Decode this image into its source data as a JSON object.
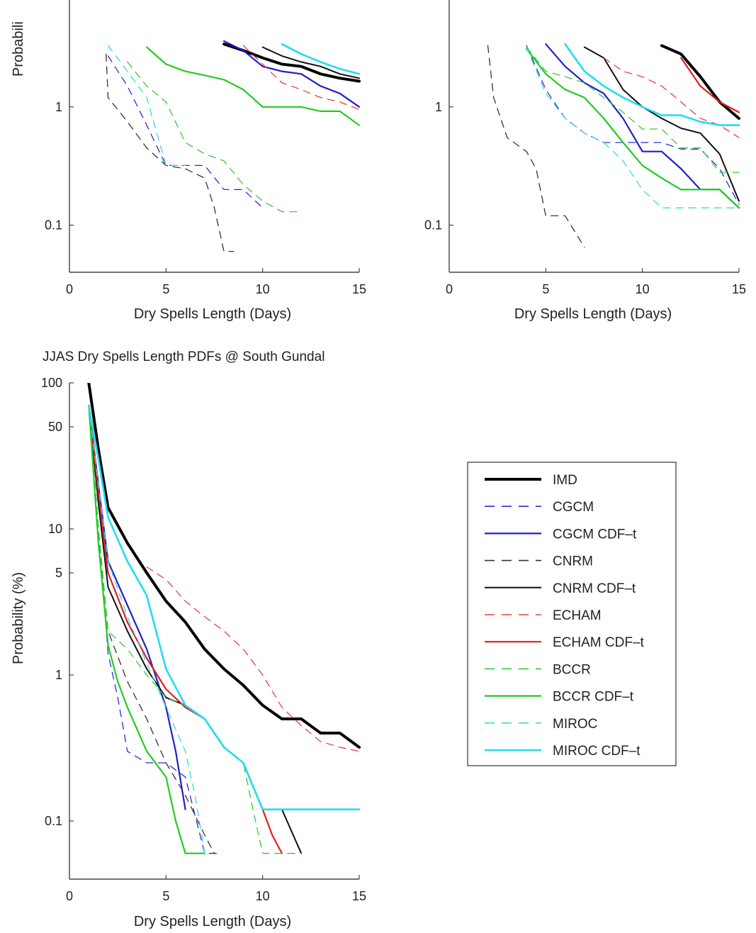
{
  "series_styles": [
    {
      "name": "IMD",
      "color": "#000000",
      "dash": false,
      "width": 4
    },
    {
      "name": "CGCM",
      "color": "#2b2bd8",
      "dash": true,
      "width": 1.3
    },
    {
      "name": "CGCM CDF–t",
      "color": "#1f1fcc",
      "dash": false,
      "width": 2.2
    },
    {
      "name": "CNRM",
      "color": "#333333",
      "dash": true,
      "width": 1.3
    },
    {
      "name": "CNRM CDF–t",
      "color": "#111111",
      "dash": false,
      "width": 2
    },
    {
      "name": "ECHAM",
      "color": "#e84040",
      "dash": true,
      "width": 1.3
    },
    {
      "name": "ECHAM CDF–t",
      "color": "#e02020",
      "dash": false,
      "width": 2.2
    },
    {
      "name": "BCCR",
      "color": "#33cc33",
      "dash": true,
      "width": 1.3
    },
    {
      "name": "BCCR CDF–t",
      "color": "#22cc22",
      "dash": false,
      "width": 2.2
    },
    {
      "name": "MIROC",
      "color": "#33dddd",
      "dash": true,
      "width": 1.3
    },
    {
      "name": "MIROC CDF–t",
      "color": "#22ddee",
      "dash": false,
      "width": 2.6
    }
  ],
  "legend": {
    "position": "right",
    "entries": [
      "IMD",
      "CGCM",
      "CGCM CDF–t",
      "CNRM",
      "CNRM CDF–t",
      "ECHAM",
      "ECHAM CDF–t",
      "BCCR",
      "BCCR CDF–t",
      "MIROC",
      "MIROC CDF–t"
    ]
  },
  "chart_data": [
    {
      "type": "line",
      "title": "",
      "xlabel": "Dry Spells Length (Days)",
      "ylabel": "Probabili",
      "yscale": "log",
      "xlim": [
        0,
        15
      ],
      "x_ticks": [
        "0",
        "5",
        "10",
        "15"
      ],
      "y_ticks": [
        {
          "value": 1,
          "label": "1"
        },
        {
          "value": 0.1,
          "label": "0.1"
        }
      ],
      "series": [
        {
          "name": "IMD",
          "x": [
            8,
            9,
            10,
            11,
            12,
            13,
            14,
            15
          ],
          "y": [
            3.4,
            3.0,
            2.6,
            2.3,
            2.2,
            1.9,
            1.75,
            1.65
          ]
        },
        {
          "name": "CGCM",
          "x": [
            2,
            3,
            4,
            5,
            6,
            7,
            8,
            9,
            10
          ],
          "y": [
            2.7,
            1.5,
            0.7,
            0.32,
            0.32,
            0.32,
            0.2,
            0.2,
            0.14
          ]
        },
        {
          "name": "CGCM CDF–t",
          "x": [
            8,
            9,
            10,
            11,
            12,
            13,
            14,
            15
          ],
          "y": [
            3.6,
            3.0,
            2.2,
            2.0,
            1.9,
            1.5,
            1.3,
            1.0
          ]
        },
        {
          "name": "CNRM",
          "x": [
            1.9,
            2,
            3,
            4,
            5,
            6,
            7,
            7.5,
            8,
            8.5
          ],
          "y": [
            2.8,
            1.2,
            0.75,
            0.45,
            0.32,
            0.3,
            0.25,
            0.14,
            0.06,
            0.06
          ]
        },
        {
          "name": "CNRM CDF–t",
          "x": [
            10,
            11,
            12,
            13,
            14,
            15
          ],
          "y": [
            3.2,
            2.7,
            2.4,
            2.2,
            1.9,
            1.75
          ]
        },
        {
          "name": "ECHAM",
          "x": [
            9,
            10,
            11,
            12,
            13,
            14,
            15
          ],
          "y": [
            3.3,
            2.3,
            1.6,
            1.4,
            1.2,
            1.1,
            0.95
          ]
        },
        {
          "name": "BCCR",
          "x": [
            3,
            4,
            5,
            6,
            7,
            8,
            9,
            10,
            11,
            12
          ],
          "y": [
            2.4,
            1.5,
            1.1,
            0.5,
            0.4,
            0.35,
            0.22,
            0.16,
            0.13,
            0.13
          ]
        },
        {
          "name": "BCCR CDF–t",
          "x": [
            4,
            5,
            6,
            7,
            8,
            9,
            10,
            11,
            12,
            13,
            14,
            15
          ],
          "y": [
            3.2,
            2.3,
            2.0,
            1.85,
            1.7,
            1.4,
            1.0,
            1.0,
            1.0,
            0.92,
            0.92,
            0.7
          ]
        },
        {
          "name": "MIROC",
          "x": [
            2,
            3,
            4,
            5,
            6
          ],
          "y": [
            3.3,
            2.0,
            1.2,
            0.32,
            0.32
          ]
        },
        {
          "name": "MIROC CDF–t",
          "x": [
            11,
            12,
            13,
            14,
            15
          ],
          "y": [
            3.4,
            2.8,
            2.4,
            2.1,
            1.9
          ]
        }
      ]
    },
    {
      "type": "line",
      "title": "",
      "xlabel": "Dry Spells Length (Days)",
      "ylabel": "",
      "yscale": "log",
      "xlim": [
        0,
        15
      ],
      "x_ticks": [
        "0",
        "5",
        "10",
        "15"
      ],
      "y_ticks": [
        {
          "value": 1,
          "label": "1"
        },
        {
          "value": 0.1,
          "label": "0.1"
        }
      ],
      "series": [
        {
          "name": "IMD",
          "x": [
            11,
            12,
            13,
            14,
            15
          ],
          "y": [
            3.3,
            2.8,
            1.8,
            1.1,
            0.8
          ]
        },
        {
          "name": "CGCM",
          "x": [
            4,
            5,
            6,
            7,
            8,
            9,
            10,
            11,
            12,
            13,
            14,
            15
          ],
          "y": [
            3.3,
            1.4,
            0.8,
            0.6,
            0.5,
            0.5,
            0.5,
            0.5,
            0.44,
            0.44,
            0.3,
            0.15
          ]
        },
        {
          "name": "CGCM CDF–t",
          "x": [
            5,
            6,
            7,
            8,
            9,
            10,
            11,
            12,
            13,
            14,
            15
          ],
          "y": [
            3.4,
            2.2,
            1.6,
            1.3,
            0.8,
            0.42,
            0.42,
            0.3,
            0.2,
            0.2,
            0.14
          ]
        },
        {
          "name": "CNRM",
          "x": [
            2,
            2.3,
            3,
            4,
            4.5,
            5,
            6,
            7
          ],
          "y": [
            3.3,
            1.2,
            0.55,
            0.42,
            0.3,
            0.12,
            0.12,
            0.065
          ]
        },
        {
          "name": "CNRM CDF–t",
          "x": [
            7,
            8,
            9,
            10,
            11,
            12,
            13,
            14,
            15
          ],
          "y": [
            3.2,
            2.6,
            1.4,
            1.0,
            0.8,
            0.66,
            0.6,
            0.4,
            0.16
          ]
        },
        {
          "name": "ECHAM",
          "x": [
            8,
            9,
            10,
            11,
            12,
            13,
            14,
            15
          ],
          "y": [
            2.6,
            2.0,
            1.8,
            1.5,
            1.1,
            0.8,
            0.7,
            0.55
          ]
        },
        {
          "name": "ECHAM CDF–t",
          "x": [
            12,
            13,
            14,
            15
          ],
          "y": [
            2.6,
            1.5,
            1.1,
            0.9
          ]
        },
        {
          "name": "BCCR",
          "x": [
            4,
            5,
            6,
            7,
            8,
            9,
            10,
            11,
            12,
            13,
            14,
            15
          ],
          "y": [
            3.2,
            2.0,
            1.8,
            1.6,
            1.2,
            0.9,
            0.65,
            0.65,
            0.45,
            0.45,
            0.28,
            0.28
          ]
        },
        {
          "name": "BCCR CDF–t",
          "x": [
            4,
            5,
            6,
            7,
            8,
            9,
            10,
            11,
            12,
            13,
            14,
            15
          ],
          "y": [
            3.1,
            1.9,
            1.4,
            1.2,
            0.8,
            0.5,
            0.32,
            0.25,
            0.2,
            0.2,
            0.2,
            0.14
          ]
        },
        {
          "name": "MIROC",
          "x": [
            4,
            5,
            6,
            7,
            8,
            9,
            10,
            11,
            12,
            13,
            14,
            15
          ],
          "y": [
            3.2,
            1.3,
            0.8,
            0.6,
            0.5,
            0.35,
            0.2,
            0.14,
            0.14,
            0.14,
            0.14,
            0.14
          ]
        },
        {
          "name": "MIROC CDF–t",
          "x": [
            6,
            7,
            8,
            9,
            10,
            11,
            12,
            13,
            14,
            15
          ],
          "y": [
            3.4,
            2.0,
            1.5,
            1.2,
            1.0,
            0.85,
            0.85,
            0.75,
            0.7,
            0.7
          ]
        }
      ]
    },
    {
      "type": "line",
      "title": "JJAS Dry Spells Length PDFs @ South Gundal",
      "xlabel": "Dry Spells Length (Days)",
      "ylabel": "Probability (%)",
      "yscale": "log",
      "xlim": [
        0,
        15
      ],
      "ylim": [
        0.04,
        100
      ],
      "x_ticks": [
        "0",
        "5",
        "10",
        "15"
      ],
      "y_ticks": [
        {
          "value": 100,
          "label": "100"
        },
        {
          "value": 50,
          "label": "50"
        },
        {
          "value": 10,
          "label": "10"
        },
        {
          "value": 5,
          "label": "5"
        },
        {
          "value": 1,
          "label": "1"
        },
        {
          "value": 0.1,
          "label": "0.1"
        }
      ],
      "series": [
        {
          "name": "IMD",
          "x": [
            1,
            1.5,
            2,
            3,
            4,
            5,
            6,
            7,
            8,
            9,
            10,
            11,
            12,
            13,
            14,
            15
          ],
          "y": [
            100,
            35,
            14,
            8,
            5,
            3.2,
            2.3,
            1.5,
            1.1,
            0.85,
            0.62,
            0.5,
            0.5,
            0.4,
            0.4,
            0.32
          ]
        },
        {
          "name": "CGCM",
          "x": [
            1,
            1.5,
            2,
            2.5,
            3,
            4,
            5,
            6,
            7,
            7.8
          ],
          "y": [
            70,
            10,
            1.4,
            0.7,
            0.3,
            0.25,
            0.25,
            0.2,
            0.06,
            0.06
          ]
        },
        {
          "name": "CGCM CDF–t",
          "x": [
            1,
            1.5,
            2,
            3,
            4,
            5,
            5.5,
            6
          ],
          "y": [
            70,
            20,
            6,
            3,
            1.5,
            0.6,
            0.3,
            0.12
          ]
        },
        {
          "name": "CNRM",
          "x": [
            1,
            1.5,
            2,
            3,
            4,
            5,
            6,
            7,
            7.5
          ],
          "y": [
            70,
            10,
            2.0,
            0.9,
            0.5,
            0.25,
            0.15,
            0.08,
            0.06
          ]
        },
        {
          "name": "CNRM CDF–t",
          "x": [
            1,
            1.5,
            2,
            3,
            4,
            5,
            6,
            7,
            8,
            9,
            10,
            11,
            12
          ],
          "y": [
            70,
            15,
            4,
            2,
            1.1,
            0.7,
            0.62,
            0.5,
            0.32,
            0.25,
            0.12,
            0.12,
            0.06
          ]
        },
        {
          "name": "ECHAM",
          "x": [
            4,
            5,
            6,
            7,
            8,
            9,
            10,
            11,
            12,
            13,
            14,
            15
          ],
          "y": [
            5.5,
            4.5,
            3.2,
            2.5,
            2.0,
            1.5,
            1.0,
            0.6,
            0.45,
            0.35,
            0.32,
            0.3
          ]
        },
        {
          "name": "ECHAM CDF–t",
          "x": [
            1,
            1.5,
            2,
            3,
            4,
            5,
            6,
            7,
            8,
            9,
            10,
            10.5,
            11
          ],
          "y": [
            70,
            18,
            5,
            2.3,
            1.3,
            0.8,
            0.6,
            0.5,
            0.32,
            0.25,
            0.12,
            0.08,
            0.06
          ]
        },
        {
          "name": "BCCR",
          "x": [
            1,
            1.5,
            2,
            3,
            4,
            5,
            6,
            7,
            8,
            9,
            9.5,
            10,
            12
          ],
          "y": [
            70,
            10,
            2.0,
            1.5,
            1.0,
            0.7,
            0.62,
            0.5,
            0.32,
            0.25,
            0.12,
            0.06,
            0.06
          ]
        },
        {
          "name": "BCCR CDF–t",
          "x": [
            1,
            1.5,
            2,
            2.5,
            3,
            4,
            5,
            5.5,
            6,
            7
          ],
          "y": [
            70,
            8,
            1.6,
            0.9,
            0.6,
            0.3,
            0.2,
            0.1,
            0.06,
            0.06
          ]
        },
        {
          "name": "MIROC",
          "x": [
            1,
            1.5,
            2,
            3,
            4,
            5,
            6,
            6.5,
            7
          ],
          "y": [
            70,
            20,
            6,
            2.5,
            1.2,
            0.6,
            0.3,
            0.15,
            0.06
          ]
        },
        {
          "name": "MIROC CDF–t",
          "x": [
            1,
            1.5,
            2,
            3,
            4,
            5,
            6,
            7,
            8,
            9,
            10,
            11,
            12,
            13,
            14,
            15
          ],
          "y": [
            70,
            30,
            12,
            6,
            3.5,
            1.1,
            0.62,
            0.5,
            0.32,
            0.25,
            0.12,
            0.12,
            0.12,
            0.12,
            0.12,
            0.12
          ]
        }
      ]
    }
  ]
}
